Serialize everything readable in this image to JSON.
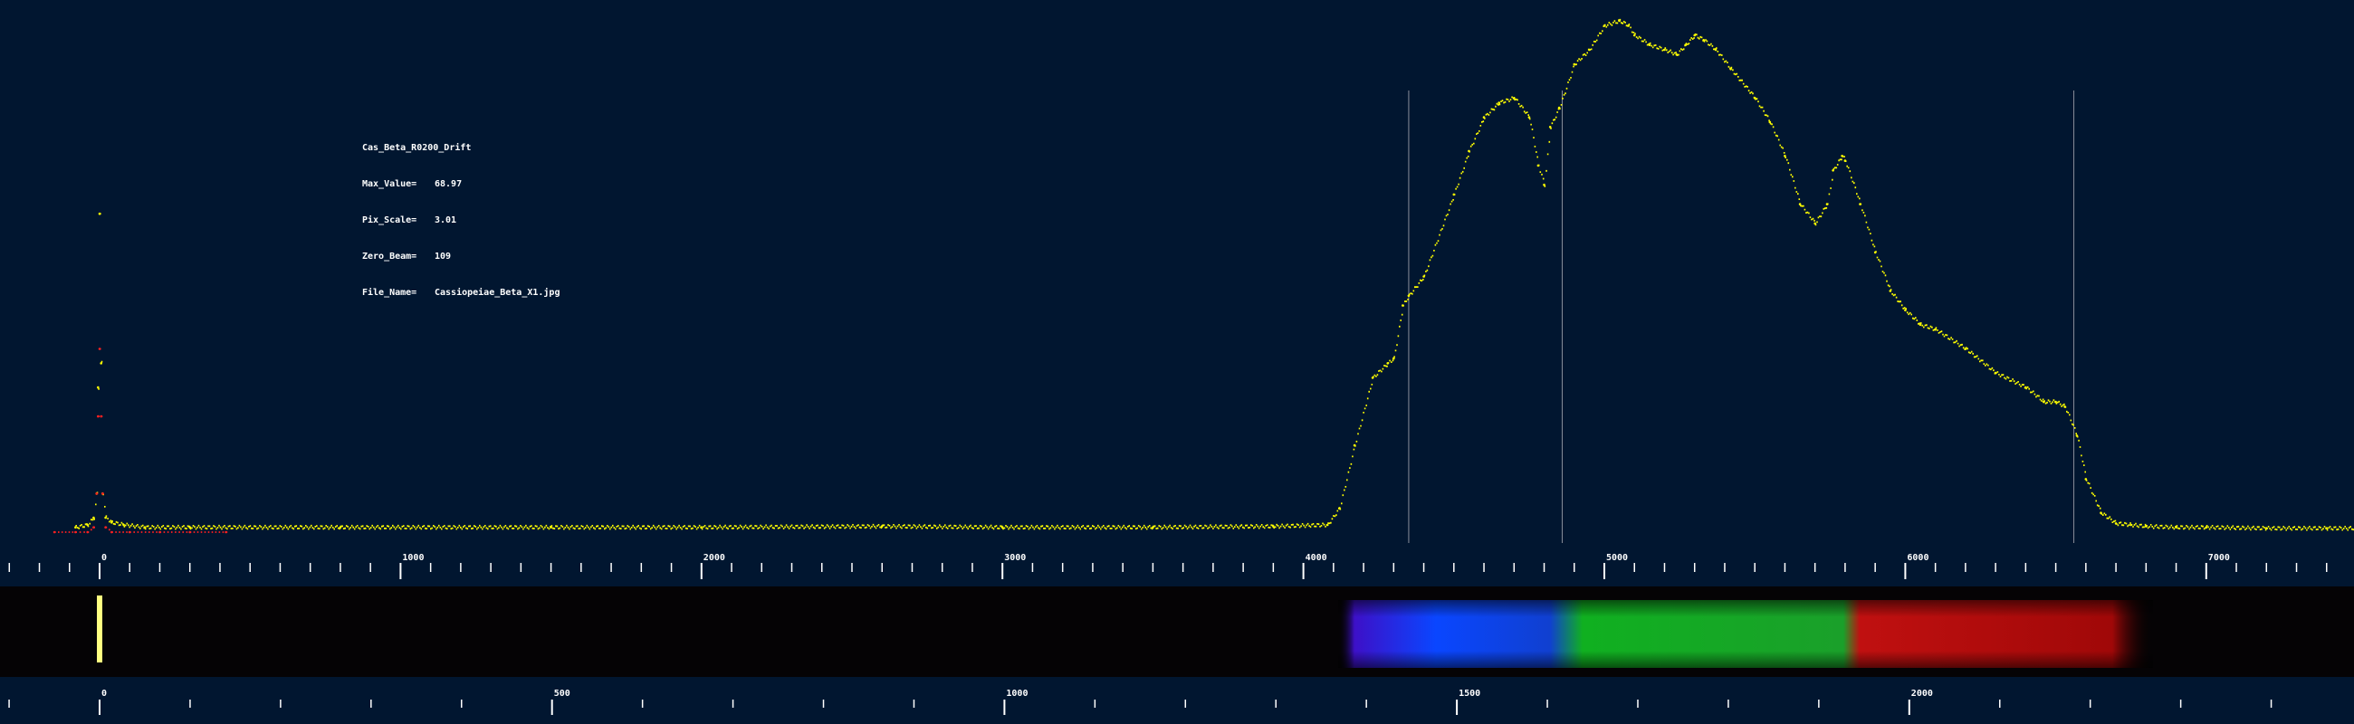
{
  "info_panel": {
    "title": "Cas_Beta_R0200_Drift",
    "fields": [
      {
        "label": "Max_Value=",
        "value": "68.97"
      },
      {
        "label": "Pix_Scale=",
        "value": "3.01"
      },
      {
        "label": "Zero_Beam=",
        "value": "109"
      },
      {
        "label": "File_Name=",
        "value": "Cassiopeiae_Beta_X1.jpg"
      }
    ]
  },
  "chart_data": {
    "type": "line",
    "series": [
      {
        "color": "#ffff00",
        "style": "points",
        "x": [
          -80,
          -40,
          -20,
          -10,
          -5,
          0,
          5,
          10,
          20,
          40,
          80,
          150,
          300,
          800,
          1500,
          2000,
          2600,
          3000,
          3500,
          3900,
          4080,
          4120,
          4170,
          4230,
          4280,
          4300,
          4330,
          4350,
          4400,
          4500,
          4550,
          4600,
          4650,
          4700,
          4750,
          4780,
          4800,
          4820,
          4850,
          4900,
          4950,
          5000,
          5050,
          5080,
          5100,
          5150,
          5200,
          5240,
          5270,
          5300,
          5330,
          5370,
          5420,
          5500,
          5550,
          5600,
          5650,
          5700,
          5740,
          5760,
          5790,
          5800,
          5850,
          5900,
          5950,
          6000,
          6050,
          6100,
          6200,
          6300,
          6400,
          6460,
          6500,
          6530,
          6570,
          6600,
          6650,
          6700,
          6750,
          6800,
          6900,
          7000,
          7200,
          7400,
          7500
        ],
        "y": [
          1,
          1.5,
          3,
          8,
          30,
          66,
          35,
          8,
          3,
          2,
          1.5,
          1,
          1,
          1,
          1,
          1,
          1.2,
          1,
          1,
          1.2,
          1.5,
          5,
          18,
          32,
          35,
          36,
          47,
          49,
          53,
          70,
          79,
          86,
          89,
          90,
          86,
          76,
          72,
          84,
          88,
          97,
          100,
          105,
          106,
          105,
          103,
          101,
          100,
          99,
          101,
          103,
          102,
          100,
          96,
          90,
          85,
          78,
          68,
          64,
          68,
          75,
          78,
          77,
          68,
          58,
          50,
          46,
          43,
          42,
          38,
          33,
          30,
          27,
          27,
          26,
          20,
          11,
          4,
          1.8,
          1.5,
          1.2,
          1,
          1,
          0.8,
          0.8,
          0.8
        ]
      },
      {
        "color": "#ff2020",
        "style": "points",
        "x": [
          -150,
          -80,
          -40,
          -20,
          -10,
          -5,
          0,
          5,
          10,
          20,
          40,
          100,
          200,
          300,
          420
        ],
        "y": [
          0,
          0,
          0,
          1,
          8,
          24,
          38,
          24,
          8,
          1,
          0,
          0,
          0,
          0,
          0
        ]
      }
    ],
    "xticks": [
      "0",
      "1000",
      "2000",
      "3000",
      "4000",
      "5000",
      "6000",
      "7000"
    ],
    "xlim": [
      -330,
      7500
    ],
    "vlines": [
      4350,
      4860,
      6560
    ],
    "spectrum_strip": {
      "zero_line_color": "#ffff80",
      "bands": [
        "#3d10c8",
        "#0a46ff",
        "#1040d0",
        "#10b020",
        "#1aa02a",
        "#c01010",
        "#a00808"
      ]
    },
    "pixel_axis": {
      "ticks": [
        "0",
        "500",
        "1000",
        "1500",
        "2000"
      ],
      "xlim": [
        -100,
        2480
      ]
    }
  }
}
